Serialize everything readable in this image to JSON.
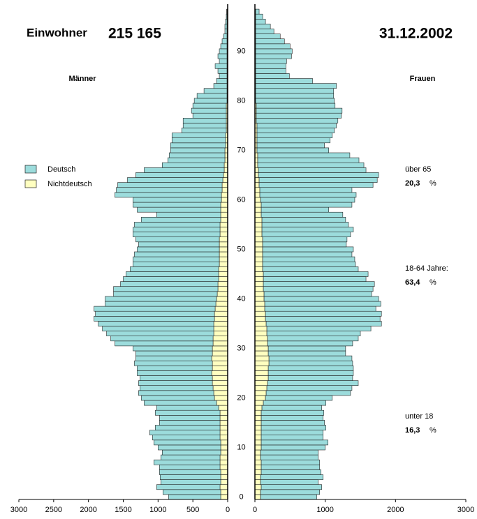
{
  "chart_data": {
    "type": "pyramid",
    "title": "Einwohner",
    "total": "215 165",
    "date": "31.12.2002",
    "ages": [
      0,
      1,
      2,
      3,
      4,
      5,
      6,
      7,
      8,
      9,
      10,
      11,
      12,
      13,
      14,
      15,
      16,
      17,
      18,
      19,
      20,
      21,
      22,
      23,
      24,
      25,
      26,
      27,
      28,
      29,
      30,
      31,
      32,
      33,
      34,
      35,
      36,
      37,
      38,
      39,
      40,
      41,
      42,
      43,
      44,
      45,
      46,
      47,
      48,
      49,
      50,
      51,
      52,
      53,
      54,
      55,
      56,
      57,
      58,
      59,
      60,
      61,
      62,
      63,
      64,
      65,
      66,
      67,
      68,
      69,
      70,
      71,
      72,
      73,
      74,
      75,
      76,
      77,
      78,
      79,
      80,
      81,
      82,
      83,
      84,
      85,
      86,
      87,
      88,
      89,
      90,
      91,
      92,
      93,
      94,
      95,
      96,
      97,
      98
    ],
    "ylim": [
      -0.5,
      99.5
    ],
    "yticks": [
      0,
      10,
      20,
      30,
      40,
      50,
      60,
      70,
      80,
      90
    ],
    "men": {
      "label": "Männer",
      "xlim": [
        0,
        3000
      ],
      "xticks": [
        0,
        500,
        1000,
        1500,
        2000,
        2500,
        3000
      ],
      "series": [
        {
          "name": "Deutsch",
          "color": "#9cdcdc",
          "values": [
            750,
            830,
            910,
            860,
            870,
            880,
            870,
            950,
            850,
            840,
            900,
            960,
            970,
            1010,
            930,
            870,
            870,
            930,
            890,
            1040,
            1050,
            1080,
            1050,
            1060,
            1040,
            1070,
            1080,
            1120,
            1090,
            1100,
            1140,
            1410,
            1470,
            1540,
            1600,
            1660,
            1730,
            1710,
            1740,
            1590,
            1600,
            1490,
            1500,
            1400,
            1370,
            1330,
            1270,
            1240,
            1240,
            1220,
            1180,
            1160,
            1200,
            1250,
            1250,
            1230,
            1140,
            920,
            1200,
            1260,
            1270,
            1530,
            1520,
            1500,
            1370,
            1260,
            1150,
            890,
            820,
            800,
            780,
            790,
            770,
            770,
            640,
            620,
            620,
            480,
            500,
            480,
            470,
            430,
            330,
            190,
            150,
            110,
            130,
            170,
            110,
            130,
            110,
            90,
            70,
            50,
            30,
            30,
            20,
            10,
            5
          ]
        },
        {
          "name": "Nichtdeutsch",
          "color": "#ffffc0",
          "values": [
            100,
            100,
            110,
            100,
            100,
            100,
            110,
            110,
            110,
            100,
            100,
            100,
            110,
            110,
            110,
            110,
            110,
            110,
            130,
            160,
            190,
            200,
            210,
            220,
            220,
            230,
            220,
            220,
            230,
            220,
            220,
            210,
            210,
            200,
            200,
            200,
            190,
            190,
            180,
            170,
            160,
            150,
            140,
            140,
            130,
            130,
            130,
            120,
            120,
            120,
            120,
            120,
            120,
            110,
            110,
            110,
            100,
            100,
            100,
            100,
            90,
            90,
            80,
            80,
            70,
            60,
            50,
            50,
            40,
            40,
            40,
            30,
            30,
            30,
            20,
            20,
            20,
            20,
            20,
            20,
            10,
            10,
            10,
            10,
            10,
            10,
            10,
            10,
            10,
            10,
            10,
            10,
            10,
            10,
            10,
            10,
            10,
            10,
            10
          ]
        }
      ]
    },
    "women": {
      "label": "Frauen",
      "xlim": [
        0,
        3000
      ],
      "xticks": [
        0,
        1000,
        2000,
        3000
      ],
      "series": [
        {
          "name": "Deutsch",
          "color": "#9cdcdc",
          "values": [
            800,
            840,
            860,
            820,
            890,
            850,
            830,
            830,
            820,
            820,
            910,
            950,
            880,
            880,
            920,
            900,
            880,
            890,
            850,
            890,
            950,
            1200,
            1210,
            1290,
            1200,
            1210,
            1210,
            1190,
            1180,
            1100,
            1100,
            1210,
            1290,
            1330,
            1480,
            1640,
            1630,
            1650,
            1580,
            1650,
            1630,
            1530,
            1560,
            1580,
            1460,
            1490,
            1360,
            1320,
            1310,
            1270,
            1290,
            1190,
            1200,
            1260,
            1300,
            1230,
            1190,
            1160,
            960,
            1290,
            1340,
            1370,
            1310,
            1620,
            1680,
            1710,
            1530,
            1510,
            1440,
            1310,
            1020,
            960,
            1040,
            1070,
            1100,
            1130,
            1160,
            1210,
            1220,
            1120,
            1120,
            1110,
            1110,
            1150,
            810,
            480,
            430,
            430,
            440,
            510,
            520,
            490,
            410,
            350,
            260,
            210,
            140,
            100,
            50
          ]
        },
        {
          "name": "Nichtdeutsch",
          "color": "#ffffc0",
          "values": [
            80,
            80,
            90,
            80,
            80,
            90,
            90,
            90,
            80,
            80,
            90,
            90,
            90,
            90,
            90,
            90,
            90,
            90,
            100,
            120,
            150,
            160,
            170,
            180,
            190,
            190,
            190,
            200,
            200,
            190,
            190,
            180,
            180,
            170,
            170,
            160,
            150,
            150,
            140,
            140,
            130,
            130,
            120,
            120,
            120,
            120,
            110,
            110,
            110,
            110,
            110,
            110,
            110,
            100,
            100,
            100,
            100,
            90,
            90,
            90,
            80,
            70,
            70,
            60,
            60,
            50,
            50,
            40,
            40,
            40,
            30,
            30,
            30,
            30,
            30,
            30,
            20,
            20,
            20,
            20,
            10,
            10,
            10,
            10,
            10,
            10,
            10,
            10,
            10,
            10,
            10,
            10,
            10,
            10,
            10,
            10,
            10,
            10,
            10
          ]
        }
      ]
    },
    "annotations": [
      {
        "text": "über 65",
        "value": "20,3",
        "unit": "%"
      },
      {
        "text": "18-64 Jahre:",
        "value": "63,4",
        "unit": "%"
      },
      {
        "text": "unter 18",
        "value": "16,3",
        "unit": "%"
      }
    ]
  }
}
